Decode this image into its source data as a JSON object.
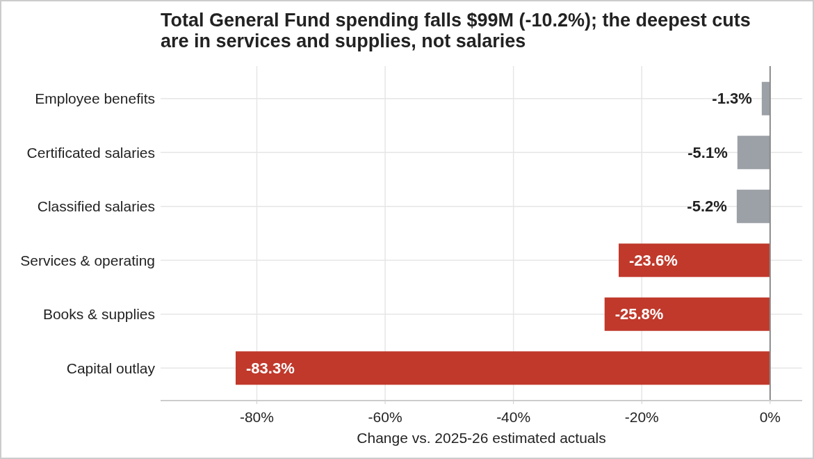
{
  "chart_data": {
    "type": "bar",
    "orientation": "horizontal",
    "title": "Total General Fund spending falls $99M (-10.2%); the deepest cuts are in services and supplies, not salaries",
    "xlabel": "Change vs. 2025-26 estimated actuals",
    "categories": [
      "Employee benefits",
      "Certificated salaries",
      "Classified salaries",
      "Services & operating",
      "Books & supplies",
      "Capital outlay"
    ],
    "values": [
      -1.3,
      -5.1,
      -5.2,
      -23.6,
      -25.8,
      -83.3
    ],
    "colors": [
      "#9ca0a7",
      "#9ca0a7",
      "#9ca0a7",
      "#c0392b",
      "#c0392b",
      "#c0392b"
    ],
    "value_labels": [
      "-1.3%",
      "-5.1%",
      "-5.2%",
      "-23.6%",
      "-25.8%",
      "-83.3%"
    ],
    "xlim": [
      -95,
      5
    ],
    "xticks": [
      {
        "value": -80,
        "label": "-80%"
      },
      {
        "value": -60,
        "label": "-60%"
      },
      {
        "value": -40,
        "label": "-40%"
      },
      {
        "value": -20,
        "label": "-20%"
      },
      {
        "value": 0,
        "label": "0%"
      }
    ],
    "ref_lines": [
      {
        "axis": "x",
        "value": 0,
        "color": "#8a8a8a"
      }
    ],
    "grid": true
  }
}
